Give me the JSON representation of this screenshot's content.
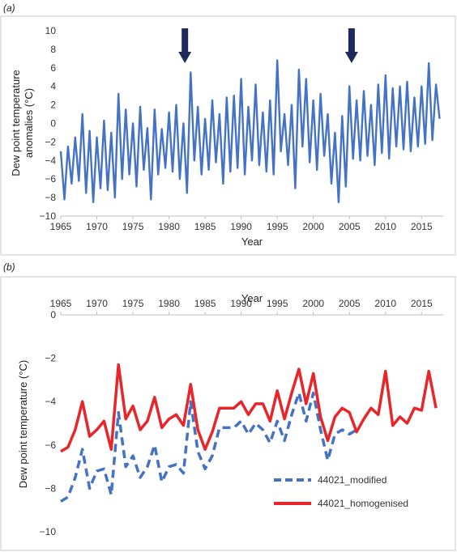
{
  "chart_data": [
    {
      "panel_label": "(a)",
      "type": "line",
      "title": "",
      "xlabel": "Year",
      "ylabel_lines": [
        "Dew point temperature",
        "anomalies (°C)"
      ],
      "xlim": [
        1965,
        2018
      ],
      "ylim": [
        -10,
        10
      ],
      "x_ticks": [
        "1965",
        "1970",
        "1975",
        "1980",
        "1985",
        "1990",
        "1995",
        "2000",
        "2005",
        "2010",
        "2015"
      ],
      "y_ticks": [
        "10",
        "8",
        "6",
        "4",
        "2",
        "0",
        "−2",
        "−4",
        "−6",
        "−8",
        "−10"
      ],
      "grid": false,
      "line_color": "#4472C4",
      "arrow_color": "#1F2A5A",
      "annotations": [
        {
          "type": "arrow-down",
          "x": 1982.2
        },
        {
          "type": "arrow-down",
          "x": 2005.3
        }
      ],
      "series": [
        {
          "x": [
            1965.0,
            1965.5,
            1966.0,
            1966.5,
            1967.0,
            1967.5,
            1968.0,
            1968.5,
            1969.0,
            1969.5,
            1970.0,
            1970.5,
            1971.0,
            1971.5,
            1972.0,
            1972.5,
            1973.0,
            1973.5,
            1974.0,
            1974.5,
            1975.0,
            1975.5,
            1976.0,
            1976.5,
            1977.0,
            1977.5,
            1978.0,
            1978.5,
            1979.0,
            1979.5,
            1980.0,
            1980.5,
            1981.0,
            1981.5,
            1982.0,
            1982.5,
            1983.0,
            1983.5,
            1984.0,
            1984.5,
            1985.0,
            1985.5,
            1986.0,
            1986.5,
            1987.0,
            1987.5,
            1988.0,
            1988.5,
            1989.0,
            1989.5,
            1990.0,
            1990.5,
            1991.0,
            1991.5,
            1992.0,
            1992.5,
            1993.0,
            1993.5,
            1994.0,
            1994.5,
            1995.0,
            1995.5,
            1996.0,
            1996.5,
            1997.0,
            1997.5,
            1998.0,
            1998.5,
            1999.0,
            1999.5,
            2000.0,
            2000.5,
            2001.0,
            2001.5,
            2002.0,
            2002.5,
            2003.0,
            2003.5,
            2004.0,
            2004.5,
            2005.0,
            2005.5,
            2006.0,
            2006.5,
            2007.0,
            2007.5,
            2008.0,
            2008.5,
            2009.0,
            2009.5,
            2010.0,
            2010.5,
            2011.0,
            2011.5,
            2012.0,
            2012.5,
            2013.0,
            2013.5,
            2014.0,
            2014.5,
            2015.0,
            2015.5,
            2016.0,
            2016.5,
            2017.0,
            2017.5
          ],
          "y": [
            -3.0,
            -8.2,
            -2.5,
            -6.5,
            -1.5,
            -6.2,
            1.0,
            -7.5,
            -0.8,
            -8.5,
            -1.5,
            -7.0,
            0.3,
            -7.2,
            -1.0,
            -8.0,
            3.2,
            -6.0,
            1.5,
            -5.5,
            0.0,
            -6.8,
            1.8,
            -5.0,
            -0.5,
            -8.2,
            1.5,
            -5.5,
            -0.6,
            -4.8,
            1.2,
            -5.2,
            2.0,
            -6.0,
            0.0,
            -7.5,
            5.5,
            -4.0,
            1.8,
            -5.5,
            0.5,
            -5.0,
            2.5,
            -4.2,
            1.0,
            -6.5,
            2.8,
            -5.2,
            3.0,
            -4.8,
            4.8,
            -5.5,
            1.8,
            -4.0,
            4.2,
            -4.5,
            1.2,
            -5.2,
            2.5,
            -5.5,
            6.8,
            -3.0,
            1.0,
            -4.5,
            2.0,
            -7.0,
            5.8,
            -2.5,
            4.8,
            -4.2,
            2.5,
            -5.0,
            3.2,
            -3.5,
            1.0,
            -6.5,
            -1.0,
            -8.5,
            0.8,
            -6.8,
            4.0,
            -3.8,
            2.5,
            -4.0,
            3.5,
            -3.5,
            2.0,
            -4.5,
            4.2,
            -3.2,
            5.2,
            -3.8,
            3.8,
            -2.5,
            4.0,
            -2.8,
            4.5,
            -3.0,
            2.8,
            -2.5,
            4.0,
            -2.2,
            6.5,
            -1.8,
            4.2,
            0.5
          ]
        }
      ]
    },
    {
      "panel_label": "(b)",
      "type": "line",
      "title": "",
      "xlabel": "Year",
      "ylabel": "Dew point temperature (°C)",
      "x_axis_position": "top",
      "xlim": [
        1965,
        2018
      ],
      "ylim": [
        -10,
        0
      ],
      "x_ticks": [
        "1965",
        "1970",
        "1975",
        "1980",
        "1985",
        "1990",
        "1995",
        "2000",
        "2005",
        "2010",
        "2015"
      ],
      "y_ticks": [
        "0",
        "−2",
        "−4",
        "−6",
        "−8",
        "−10"
      ],
      "grid": false,
      "legend_position": "bottom-right",
      "x": [
        1965,
        1966,
        1967,
        1968,
        1969,
        1970,
        1971,
        1972,
        1973,
        1974,
        1975,
        1976,
        1977,
        1978,
        1979,
        1980,
        1981,
        1982,
        1983,
        1984,
        1985,
        1986,
        1987,
        1988,
        1989,
        1990,
        1991,
        1992,
        1993,
        1994,
        1995,
        1996,
        1997,
        1998,
        1999,
        2000,
        2001,
        2002,
        2003,
        2004,
        2005,
        2006,
        2007,
        2008,
        2009,
        2010,
        2011,
        2012,
        2013,
        2014,
        2015,
        2016,
        2017
      ],
      "series": [
        {
          "name": "44021_modified",
          "color": "#4472C4",
          "style": "dashed",
          "values": [
            -8.6,
            -8.4,
            -7.5,
            -6.2,
            -8.0,
            -7.2,
            -7.1,
            -8.3,
            -4.5,
            -7.0,
            -6.5,
            -7.5,
            -7.0,
            -6.0,
            -7.7,
            -7.0,
            -6.9,
            -7.3,
            -4.0,
            -6.3,
            -7.1,
            -6.5,
            -5.2,
            -5.2,
            -5.2,
            -4.9,
            -5.5,
            -5.0,
            -5.3,
            -5.9,
            -4.9,
            -5.8,
            -4.6,
            -3.6,
            -4.9,
            -3.6,
            -5.3,
            -6.7,
            -5.5,
            -5.3,
            -5.5,
            -5.3,
            null,
            null,
            null,
            null,
            null,
            null,
            null,
            null,
            null,
            null,
            null
          ]
        },
        {
          "name": "44021_homogenised",
          "color": "#E8262A",
          "style": "solid",
          "values": [
            -6.3,
            -6.1,
            -5.3,
            -4.0,
            -5.6,
            -5.3,
            -4.9,
            -6.2,
            -2.3,
            -4.8,
            -4.2,
            -5.3,
            -4.9,
            -3.8,
            -5.2,
            -4.8,
            -4.6,
            -5.1,
            -3.2,
            -5.3,
            -6.2,
            -5.4,
            -4.3,
            -4.3,
            -4.3,
            -4.0,
            -4.6,
            -4.1,
            -4.1,
            -4.9,
            -3.5,
            -4.8,
            -3.6,
            -2.5,
            -4.1,
            -2.7,
            -4.7,
            -5.8,
            -4.7,
            -4.3,
            -4.5,
            -5.4,
            -4.8,
            -4.3,
            -4.6,
            -2.6,
            -5.1,
            -4.7,
            -5.0,
            -4.3,
            -4.4,
            -2.6,
            -4.3
          ]
        }
      ]
    }
  ]
}
